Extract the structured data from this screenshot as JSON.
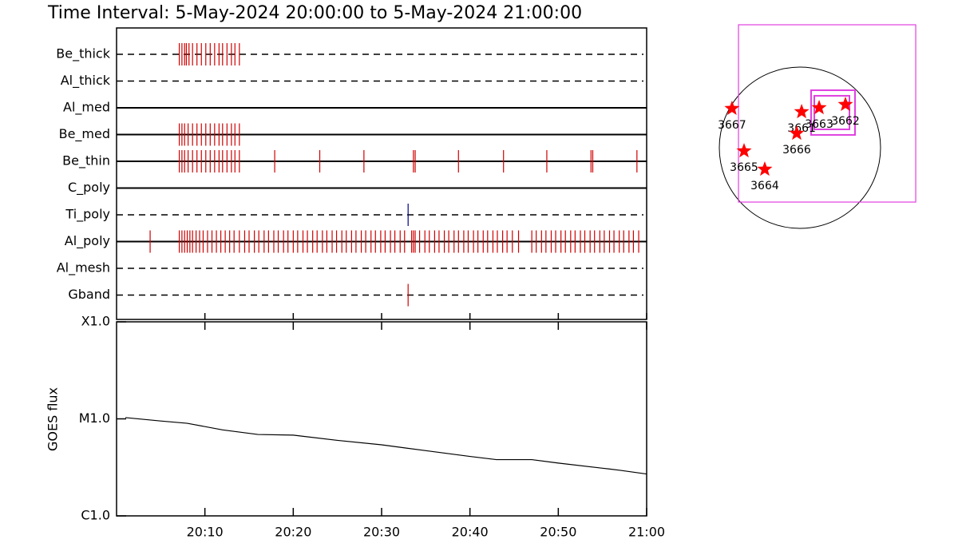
{
  "title": "Time Interval:  5-May-2024 20:00:00 to  5-May-2024 21:00:00",
  "chart_data": [
    {
      "type": "timeline",
      "xlim": [
        0,
        60
      ],
      "series": [
        {
          "name": "Be_thick",
          "color": "#d00000",
          "line": "dashed",
          "x": [
            7.1,
            7.4,
            7.7,
            7.9,
            8.2,
            8.6,
            9.1,
            9.6,
            10.1,
            10.6,
            11.1,
            11.6,
            12.0,
            12.5,
            13.0,
            13.4,
            13.9
          ]
        },
        {
          "name": "Al_thick",
          "color": "#d00000",
          "line": "dashed",
          "x": []
        },
        {
          "name": "Al_med",
          "color": "#d00000",
          "line": "solid",
          "x": []
        },
        {
          "name": "Be_med",
          "color": "#d00000",
          "line": "solid",
          "x": [
            7.1,
            7.4,
            7.7,
            8.1,
            8.6,
            9.1,
            9.6,
            10.1,
            10.6,
            11.1,
            11.6,
            12.0,
            12.5,
            13.0,
            13.4,
            13.9
          ]
        },
        {
          "name": "Be_thin",
          "color": "#d00000",
          "line": "solid",
          "x": [
            7.1,
            7.4,
            7.7,
            8.1,
            8.6,
            9.1,
            9.6,
            10.1,
            10.6,
            11.1,
            11.6,
            12.0,
            12.5,
            13.0,
            13.4,
            13.9,
            17.9,
            23.0,
            28.0,
            33.6,
            33.8,
            38.7,
            43.8,
            48.7,
            53.7,
            53.9,
            58.9
          ]
        },
        {
          "name": "C_poly",
          "color": "#d00000",
          "line": "solid",
          "x": []
        },
        {
          "name": "Ti_poly",
          "color": "#000080",
          "line": "dashed",
          "x": [
            33.0
          ]
        },
        {
          "name": "Al_poly",
          "color": "#d00000",
          "line": "solid",
          "x": [
            3.8,
            7.1,
            7.4,
            7.7,
            8.0,
            8.3,
            8.6,
            9.0,
            9.4,
            9.8,
            10.3,
            10.8,
            11.3,
            11.8,
            12.3,
            12.8,
            13.3,
            13.9,
            14.5,
            15.0,
            15.6,
            16.1,
            16.7,
            17.2,
            17.8,
            18.3,
            18.9,
            19.4,
            20.0,
            20.5,
            21.1,
            21.6,
            22.2,
            22.7,
            23.3,
            23.8,
            24.4,
            24.9,
            25.5,
            26.0,
            26.6,
            27.1,
            27.7,
            28.2,
            28.8,
            29.3,
            29.9,
            30.4,
            31.0,
            31.5,
            32.1,
            32.6,
            33.4,
            33.6,
            33.8,
            34.3,
            34.9,
            35.4,
            36.0,
            36.5,
            37.1,
            37.6,
            38.2,
            38.7,
            39.3,
            39.8,
            40.4,
            40.9,
            41.5,
            42.0,
            42.6,
            43.1,
            43.7,
            44.2,
            44.8,
            45.5,
            47.0,
            47.5,
            48.1,
            48.6,
            49.2,
            49.7,
            50.3,
            50.8,
            51.4,
            51.9,
            52.5,
            53.0,
            53.6,
            54.1,
            54.7,
            55.2,
            55.8,
            56.3,
            56.9,
            57.4,
            58.0,
            58.5,
            59.1
          ]
        },
        {
          "name": "Al_mesh",
          "color": "#d00000",
          "line": "dashed",
          "x": []
        },
        {
          "name": "Gband",
          "color": "#d00000",
          "line": "dashed",
          "x": [
            33.0
          ]
        }
      ]
    },
    {
      "type": "line",
      "y_label": "GOES flux",
      "log_scale": true,
      "color": "#000000",
      "x": [
        1,
        5,
        8,
        12,
        16,
        20,
        25,
        30,
        35,
        40,
        43,
        47,
        50,
        55,
        57,
        60
      ],
      "values": [
        1.03e-05,
        9.5e-06,
        9e-06,
        7.7e-06,
        6.9e-06,
        6.8e-06,
        6e-06,
        5.4e-06,
        4.7e-06,
        4.1e-06,
        3.8e-06,
        3.8e-06,
        3.5e-06,
        3.1e-06,
        2.95e-06,
        2.7e-06
      ],
      "xlim": [
        0,
        60
      ],
      "xticks": [
        {
          "value": 10,
          "label": "20:10"
        },
        {
          "value": 20,
          "label": "20:20"
        },
        {
          "value": 30,
          "label": "20:30"
        },
        {
          "value": 40,
          "label": "20:40"
        },
        {
          "value": 50,
          "label": "20:50"
        },
        {
          "value": 60,
          "label": "21:00"
        }
      ],
      "ylim": [
        1e-06,
        0.0001
      ],
      "yticks": [
        {
          "value": 1e-06,
          "label": "C1.0"
        },
        {
          "value": 1e-05,
          "label": "M1.0"
        },
        {
          "value": 0.0001,
          "label": "X1.0"
        }
      ]
    },
    {
      "type": "map",
      "color": "#ff0000",
      "fov_color": "#e040e0",
      "regions": [
        {
          "label": "3661",
          "x": 20,
          "y": 423
        },
        {
          "label": "3667",
          "x": -800,
          "y": 461
        },
        {
          "label": "3666",
          "x": -38,
          "y": 169
        },
        {
          "label": "3663",
          "x": 226,
          "y": 470
        },
        {
          "label": "3662",
          "x": 536,
          "y": 508
        },
        {
          "label": "3665",
          "x": -658,
          "y": -38
        },
        {
          "label": "3664",
          "x": -414,
          "y": -254
        }
      ],
      "fov": [
        {
          "x": 320,
          "y": 404,
          "width": 2087,
          "height": 2087
        },
        {
          "x": 390,
          "y": 414,
          "width": 517,
          "height": 526
        },
        {
          "x": 376,
          "y": 414,
          "width": 414,
          "height": 395
        }
      ]
    }
  ]
}
